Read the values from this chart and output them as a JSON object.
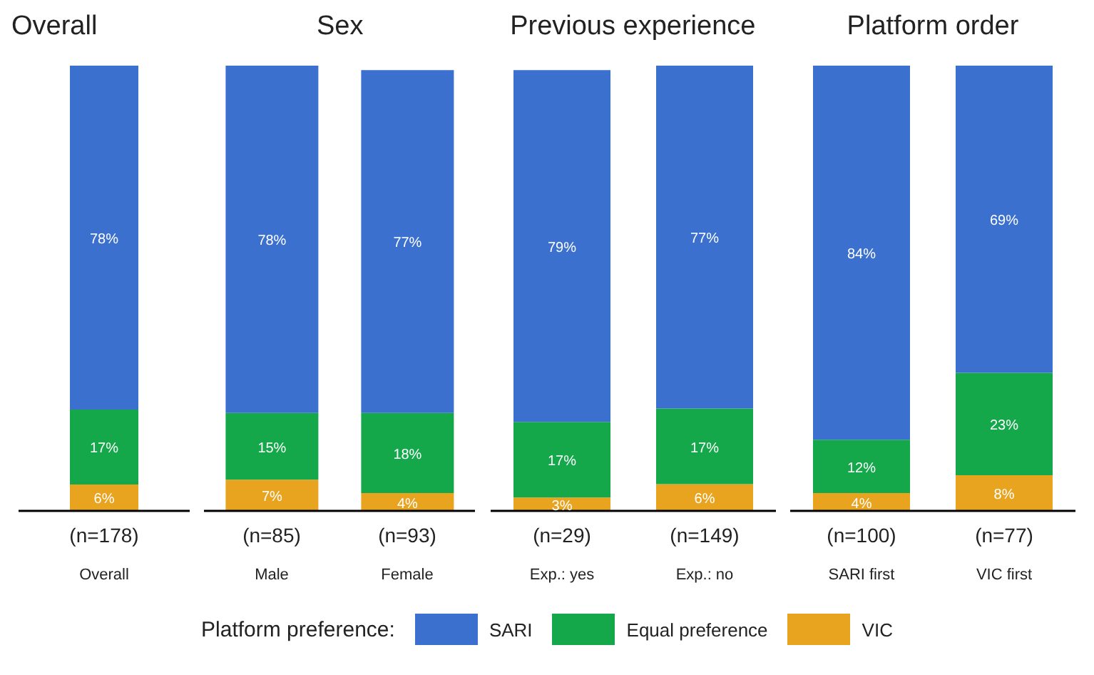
{
  "chart_data": [
    {
      "type": "bar",
      "title": "Overall",
      "stacked": true,
      "categories": [
        "(n=178)\nOverall"
      ],
      "series": [
        {
          "color": "#e8a31f",
          "values": [
            6
          ],
          "value_labels": [
            "6%"
          ]
        },
        {
          "color": "#14a84b",
          "values": [
            17
          ],
          "value_labels": [
            "17%"
          ]
        },
        {
          "color": "#3b70cf",
          "values": [
            78
          ],
          "value_labels": [
            "78%"
          ]
        }
      ]
    },
    {
      "type": "bar",
      "title": "Sex",
      "stacked": true,
      "categories": [
        "(n=85)\nMale",
        "(n=93)\nFemale"
      ],
      "series": [
        {
          "color": "#e8a31f",
          "values": [
            7,
            4
          ],
          "value_labels": [
            "7%",
            "4%"
          ]
        },
        {
          "color": "#14a84b",
          "values": [
            15,
            18
          ],
          "value_labels": [
            "15%",
            "18%"
          ]
        },
        {
          "color": "#3b70cf",
          "values": [
            78,
            77
          ],
          "value_labels": [
            "78%",
            "77%"
          ]
        }
      ]
    },
    {
      "type": "bar",
      "title": "Previous experience",
      "stacked": true,
      "categories": [
        "(n=29)\nExp.: yes",
        "(n=149)\nExp.: no"
      ],
      "series": [
        {
          "color": "#e8a31f",
          "values": [
            3,
            6
          ],
          "value_labels": [
            "3%",
            "6%"
          ]
        },
        {
          "color": "#14a84b",
          "values": [
            17,
            17
          ],
          "value_labels": [
            "17%",
            "17%"
          ]
        },
        {
          "color": "#3b70cf",
          "values": [
            79,
            77
          ],
          "value_labels": [
            "79%",
            "77%"
          ]
        }
      ]
    },
    {
      "type": "bar",
      "title": "Platform order",
      "stacked": true,
      "legend": "bottom",
      "legend_title": "Platform preference:",
      "categories": [
        "(n=100)\nSARI first",
        "(n=77)\nVIC first"
      ],
      "series": [
        {
          "name": "VIC",
          "color": "#e8a31f",
          "values": [
            4,
            8
          ],
          "value_labels": [
            "4%",
            "8%"
          ]
        },
        {
          "name": "Equal preference",
          "color": "#14a84b",
          "values": [
            12,
            23
          ],
          "value_labels": [
            "12%",
            "23%"
          ]
        },
        {
          "name": "SARI",
          "color": "#3b70cf",
          "values": [
            84,
            69
          ],
          "value_labels": [
            "84%",
            "69%"
          ]
        }
      ]
    }
  ]
}
